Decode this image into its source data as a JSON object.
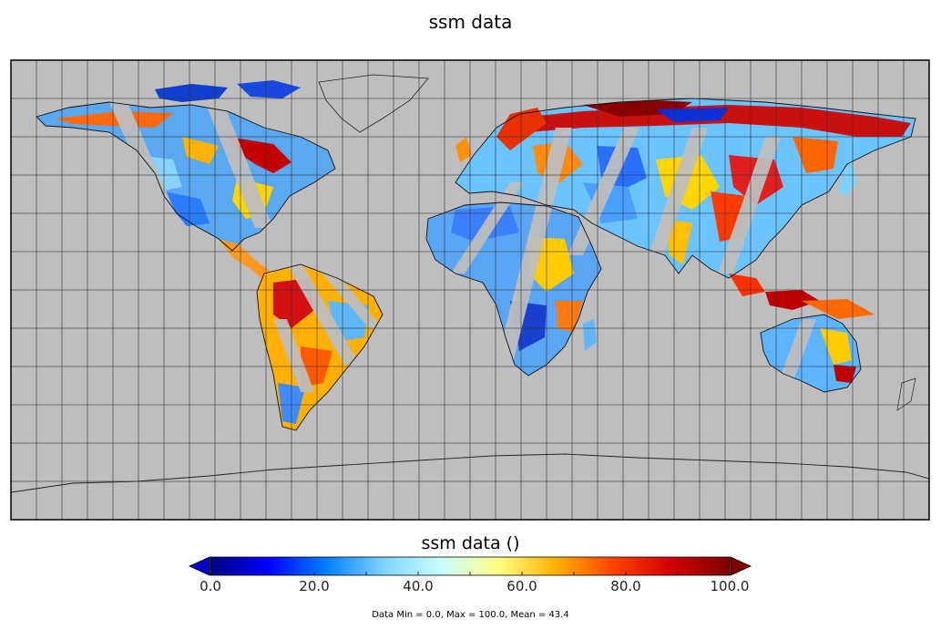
{
  "title": "ssm data",
  "colorbar": {
    "title": "ssm data ()",
    "ticks": [
      "0.0",
      "20.0",
      "40.0",
      "60.0",
      "80.0",
      "100.0"
    ],
    "tick_values": [
      0,
      20,
      40,
      60,
      80,
      100
    ],
    "range": [
      0,
      100
    ],
    "colormap": [
      "#00007f",
      "#0000ff",
      "#007fff",
      "#7fd4ff",
      "#c8ffff",
      "#ffff80",
      "#ffb000",
      "#ff4000",
      "#d00000",
      "#7f0000"
    ]
  },
  "stats": "Data Min = 0.0, Max = 100.0, Mean = 43.4",
  "map": {
    "projection": "equirectangular",
    "background_color": "#bebebe",
    "grid_spacing_degrees": 10,
    "lon_range": [
      -180,
      180
    ],
    "lat_range": [
      -60,
      60
    ]
  }
}
